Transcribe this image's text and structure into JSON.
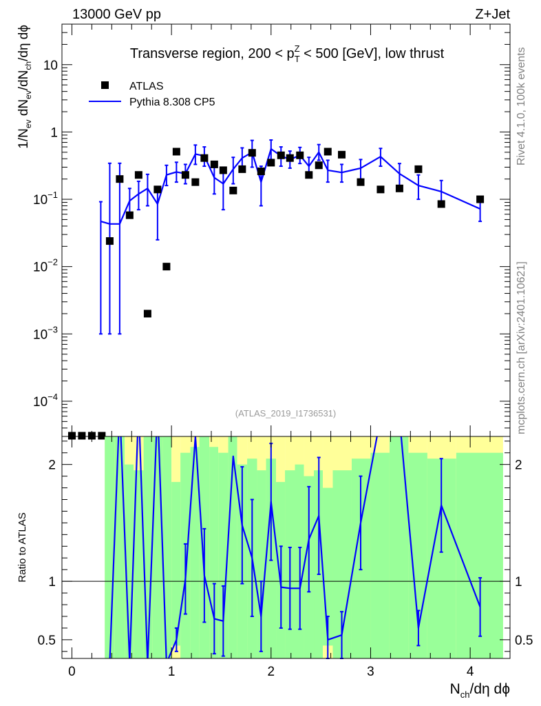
{
  "header": {
    "energy_label": "13000 GeV pp",
    "process_label": "Z+Jet",
    "rivet_label": "Rivet 4.1.0,  100k events",
    "mcplots_label": "mcplots.cern.ch [arXiv:2401.10621]",
    "analysis_label": "(ATLAS_2019_I1736531)"
  },
  "colors": {
    "mc_line": "#0000ff",
    "data_marker": "#000000",
    "band_inner": "#99ff99",
    "band_outer": "#ffff99",
    "analysis_text": "#999999",
    "side_text": "#808080"
  },
  "chart_data": [
    {
      "type": "scatter",
      "panel": "main",
      "title": "Transverse region, 200 < p_T^Z < 500 [GeV], low thrust",
      "title_parts": {
        "pre": "Transverse region, 200 < p",
        "sup": "Z",
        "sub": "T",
        "post": " < 500 [GeV], low thrust"
      },
      "ylabel": "1/N_ev dN_ev/dN_ch/dη dϕ",
      "ylabel_parts": {
        "a": "1/N",
        "a_sub": "ev",
        "b": " dN",
        "b_sub": "ev",
        "c": "/dN",
        "c_sub": "ch",
        "d": "/dη dϕ"
      },
      "yscale": "log",
      "ylim": [
        3e-05,
        40
      ],
      "xlim": [
        -0.1,
        4.4
      ],
      "y_ticks": [
        {
          "value": 0.0001,
          "base": "10",
          "exp": "−4"
        },
        {
          "value": 0.001,
          "base": "10",
          "exp": "−3"
        },
        {
          "value": 0.01,
          "base": "10",
          "exp": "−2"
        },
        {
          "value": 0.1,
          "base": "10",
          "exp": "−1"
        },
        {
          "value": 1,
          "base": "1",
          "exp": ""
        },
        {
          "value": 10,
          "base": "10",
          "exp": ""
        }
      ],
      "legend": [
        {
          "name": "ATLAS",
          "kind": "marker"
        },
        {
          "name": "Pythia 8.308 CP5",
          "kind": "line"
        }
      ],
      "series": [
        {
          "name": "ATLAS",
          "x": [
            0.0,
            0.1,
            0.2,
            0.3,
            0.38,
            0.48,
            0.58,
            0.67,
            0.76,
            0.86,
            0.95,
            1.05,
            1.14,
            1.24,
            1.33,
            1.43,
            1.52,
            1.62,
            1.71,
            1.81,
            1.9,
            2.0,
            2.1,
            2.19,
            2.29,
            2.38,
            2.48,
            2.57,
            2.71,
            2.9,
            3.1,
            3.29,
            3.48,
            3.71,
            4.1
          ],
          "y": [
            3e-05,
            3e-05,
            3e-05,
            3e-05,
            0.024,
            0.2,
            0.058,
            0.23,
            0.002,
            0.14,
            0.01,
            0.51,
            0.23,
            0.18,
            0.41,
            0.33,
            0.27,
            0.135,
            0.28,
            0.49,
            0.26,
            0.35,
            0.45,
            0.41,
            0.45,
            0.23,
            0.32,
            0.51,
            0.46,
            0.18,
            0.14,
            0.145,
            0.28,
            0.085,
            0.1
          ]
        },
        {
          "name": "Pythia 8.308 CP5",
          "x": [
            0.29,
            0.38,
            0.48,
            0.58,
            0.67,
            0.76,
            0.86,
            0.95,
            1.05,
            1.14,
            1.24,
            1.33,
            1.43,
            1.52,
            1.62,
            1.71,
            1.81,
            1.9,
            2.0,
            2.1,
            2.19,
            2.29,
            2.38,
            2.48,
            2.57,
            2.71,
            2.9,
            3.1,
            3.29,
            3.48,
            3.71,
            4.1
          ],
          "y": [
            0.047,
            0.043,
            0.043,
            0.095,
            0.12,
            0.145,
            0.085,
            0.23,
            0.255,
            0.24,
            0.47,
            0.44,
            0.21,
            0.17,
            0.28,
            0.41,
            0.5,
            0.18,
            0.56,
            0.44,
            0.39,
            0.45,
            0.31,
            0.5,
            0.27,
            0.25,
            0.29,
            0.43,
            0.24,
            0.16,
            0.13,
            0.072
          ],
          "err_lo": [
            0.046,
            0.042,
            0.042,
            0.04,
            0.05,
            0.065,
            0.06,
            0.07,
            0.075,
            0.07,
            0.14,
            0.13,
            0.09,
            0.1,
            0.11,
            0.13,
            0.2,
            0.1,
            0.17,
            0.13,
            0.1,
            0.11,
            0.09,
            0.12,
            0.09,
            0.07,
            0.09,
            0.12,
            0.09,
            0.06,
            0.05,
            0.025
          ],
          "err_hi": [
            0.045,
            0.3,
            0.3,
            0.05,
            0.065,
            0.09,
            0.07,
            0.09,
            0.1,
            0.09,
            0.17,
            0.16,
            0.12,
            0.13,
            0.14,
            0.17,
            0.25,
            0.13,
            0.2,
            0.16,
            0.13,
            0.14,
            0.11,
            0.15,
            0.11,
            0.08,
            0.1,
            0.14,
            0.1,
            0.07,
            0.06,
            0.03
          ]
        }
      ]
    },
    {
      "type": "line",
      "panel": "ratio",
      "ylabel": "Ratio to ATLAS",
      "xlabel": "N_ch/dη dϕ",
      "xlabel_parts": {
        "a": "N",
        "a_sub": "ch",
        "b": "/dη dϕ"
      },
      "xlim": [
        -0.1,
        4.4
      ],
      "ylim": [
        0.34,
        2.24
      ],
      "x_ticks": [
        0,
        1,
        2,
        3,
        4
      ],
      "y_ticks": [
        0.5,
        1,
        2
      ],
      "reference_line": 1,
      "band_bins": [
        {
          "x0": 0.33,
          "x1": 0.43,
          "inner_lo": 0.34,
          "inner_hi": 2.24,
          "outer_lo": 0.34,
          "outer_hi": 2.24
        },
        {
          "x0": 0.43,
          "x1": 0.53,
          "inner_lo": 0.34,
          "inner_hi": 2.24,
          "outer_lo": 0.34,
          "outer_hi": 2.24
        },
        {
          "x0": 0.53,
          "x1": 0.62,
          "inner_lo": 0.34,
          "inner_hi": 2.0,
          "outer_lo": 0.34,
          "outer_hi": 2.24
        },
        {
          "x0": 0.62,
          "x1": 0.72,
          "inner_lo": 0.34,
          "inner_hi": 1.95,
          "outer_lo": 0.34,
          "outer_hi": 2.24
        },
        {
          "x0": 0.72,
          "x1": 0.81,
          "inner_lo": 0.34,
          "inner_hi": 2.24,
          "outer_lo": 0.34,
          "outer_hi": 2.24
        },
        {
          "x0": 0.81,
          "x1": 0.91,
          "inner_lo": 0.34,
          "inner_hi": 2.24,
          "outer_lo": 0.34,
          "outer_hi": 2.24
        },
        {
          "x0": 0.91,
          "x1": 1.0,
          "inner_lo": 0.34,
          "inner_hi": 2.24,
          "outer_lo": 0.34,
          "outer_hi": 2.24
        },
        {
          "x0": 1.0,
          "x1": 1.09,
          "inner_lo": 0.45,
          "inner_hi": 1.85,
          "outer_lo": 0.34,
          "outer_hi": 2.24
        },
        {
          "x0": 1.09,
          "x1": 1.19,
          "inner_lo": 0.34,
          "inner_hi": 2.1,
          "outer_lo": 0.34,
          "outer_hi": 2.24
        },
        {
          "x0": 1.19,
          "x1": 1.28,
          "inner_lo": 0.34,
          "inner_hi": 2.15,
          "outer_lo": 0.34,
          "outer_hi": 2.24
        },
        {
          "x0": 1.28,
          "x1": 1.38,
          "inner_lo": 0.34,
          "inner_hi": 2.24,
          "outer_lo": 0.34,
          "outer_hi": 2.24
        },
        {
          "x0": 1.38,
          "x1": 1.47,
          "inner_lo": 0.34,
          "inner_hi": 2.15,
          "outer_lo": 0.34,
          "outer_hi": 2.24
        },
        {
          "x0": 1.47,
          "x1": 1.57,
          "inner_lo": 0.34,
          "inner_hi": 2.1,
          "outer_lo": 0.34,
          "outer_hi": 2.24
        },
        {
          "x0": 1.57,
          "x1": 1.66,
          "inner_lo": 0.34,
          "inner_hi": 2.24,
          "outer_lo": 0.34,
          "outer_hi": 2.24
        },
        {
          "x0": 1.66,
          "x1": 1.76,
          "inner_lo": 0.34,
          "inner_hi": 2.0,
          "outer_lo": 0.34,
          "outer_hi": 2.24
        },
        {
          "x0": 1.76,
          "x1": 1.86,
          "inner_lo": 0.34,
          "inner_hi": 2.05,
          "outer_lo": 0.34,
          "outer_hi": 2.24
        },
        {
          "x0": 1.86,
          "x1": 1.95,
          "inner_lo": 0.34,
          "inner_hi": 1.95,
          "outer_lo": 0.34,
          "outer_hi": 2.24
        },
        {
          "x0": 1.95,
          "x1": 2.05,
          "inner_lo": 0.34,
          "inner_hi": 2.05,
          "outer_lo": 0.34,
          "outer_hi": 2.24
        },
        {
          "x0": 2.05,
          "x1": 2.14,
          "inner_lo": 0.34,
          "inner_hi": 1.85,
          "outer_lo": 0.34,
          "outer_hi": 2.24
        },
        {
          "x0": 2.14,
          "x1": 2.24,
          "inner_lo": 0.34,
          "inner_hi": 1.95,
          "outer_lo": 0.34,
          "outer_hi": 2.24
        },
        {
          "x0": 2.24,
          "x1": 2.33,
          "inner_lo": 0.34,
          "inner_hi": 2.0,
          "outer_lo": 0.34,
          "outer_hi": 2.24
        },
        {
          "x0": 2.33,
          "x1": 2.43,
          "inner_lo": 0.34,
          "inner_hi": 1.9,
          "outer_lo": 0.34,
          "outer_hi": 2.24
        },
        {
          "x0": 2.43,
          "x1": 2.52,
          "inner_lo": 0.34,
          "inner_hi": 1.95,
          "outer_lo": 0.34,
          "outer_hi": 2.24
        },
        {
          "x0": 2.52,
          "x1": 2.62,
          "inner_lo": 0.45,
          "inner_hi": 1.8,
          "outer_lo": 0.34,
          "outer_hi": 2.24
        },
        {
          "x0": 2.62,
          "x1": 2.81,
          "inner_lo": 0.34,
          "inner_hi": 1.95,
          "outer_lo": 0.34,
          "outer_hi": 2.24
        },
        {
          "x0": 2.81,
          "x1": 3.0,
          "inner_lo": 0.34,
          "inner_hi": 2.05,
          "outer_lo": 0.34,
          "outer_hi": 2.24
        },
        {
          "x0": 3.0,
          "x1": 3.19,
          "inner_lo": 0.34,
          "inner_hi": 2.1,
          "outer_lo": 0.34,
          "outer_hi": 2.24
        },
        {
          "x0": 3.19,
          "x1": 3.38,
          "inner_lo": 0.34,
          "inner_hi": 2.24,
          "outer_lo": 0.34,
          "outer_hi": 2.24
        },
        {
          "x0": 3.38,
          "x1": 3.57,
          "inner_lo": 0.34,
          "inner_hi": 2.1,
          "outer_lo": 0.34,
          "outer_hi": 2.24
        },
        {
          "x0": 3.57,
          "x1": 3.86,
          "inner_lo": 0.34,
          "inner_hi": 2.05,
          "outer_lo": 0.34,
          "outer_hi": 2.24
        },
        {
          "x0": 3.86,
          "x1": 4.33,
          "inner_lo": 0.34,
          "inner_hi": 2.1,
          "outer_lo": 0.34,
          "outer_hi": 2.24
        }
      ],
      "series": [
        {
          "name": "Pythia 8.308 CP5 / ATLAS",
          "x": [
            0.38,
            0.48,
            0.58,
            0.67,
            0.76,
            0.86,
            0.95,
            1.05,
            1.14,
            1.24,
            1.33,
            1.43,
            1.52,
            1.62,
            1.71,
            1.81,
            1.9,
            2.0,
            2.1,
            2.19,
            2.29,
            2.38,
            2.48,
            2.57,
            2.71,
            2.9,
            3.1,
            3.29,
            3.48,
            3.71,
            4.1
          ],
          "y": [
            0.3,
            2.5,
            0.3,
            2.5,
            0.3,
            2.5,
            0.3,
            0.5,
            1.02,
            2.24,
            1.05,
            0.68,
            0.66,
            2.07,
            1.48,
            1.2,
            0.7,
            1.68,
            0.95,
            0.94,
            0.94,
            1.36,
            1.56,
            0.5,
            0.54,
            1.5,
            2.4,
            2.4,
            0.6,
            1.65,
            0.78
          ],
          "err_lo": [
            0,
            0,
            0,
            0,
            0,
            0,
            0,
            0.1,
            0.3,
            0,
            0.4,
            0.3,
            0.3,
            0,
            0.5,
            0.5,
            0.3,
            0.5,
            0.35,
            0.35,
            0.35,
            0.45,
            0.5,
            0.2,
            0.2,
            0.4,
            0,
            0,
            0.15,
            0.4,
            0.25
          ],
          "err_hi": [
            0,
            0,
            0,
            0,
            0,
            0,
            0,
            0.1,
            0.3,
            0,
            0.4,
            0.3,
            0.3,
            0,
            0.5,
            0.5,
            0.3,
            0.5,
            0.35,
            0.35,
            0.35,
            0.45,
            0.5,
            0.2,
            0.2,
            0.4,
            0,
            0,
            0.15,
            0.4,
            0.25
          ]
        }
      ]
    }
  ]
}
